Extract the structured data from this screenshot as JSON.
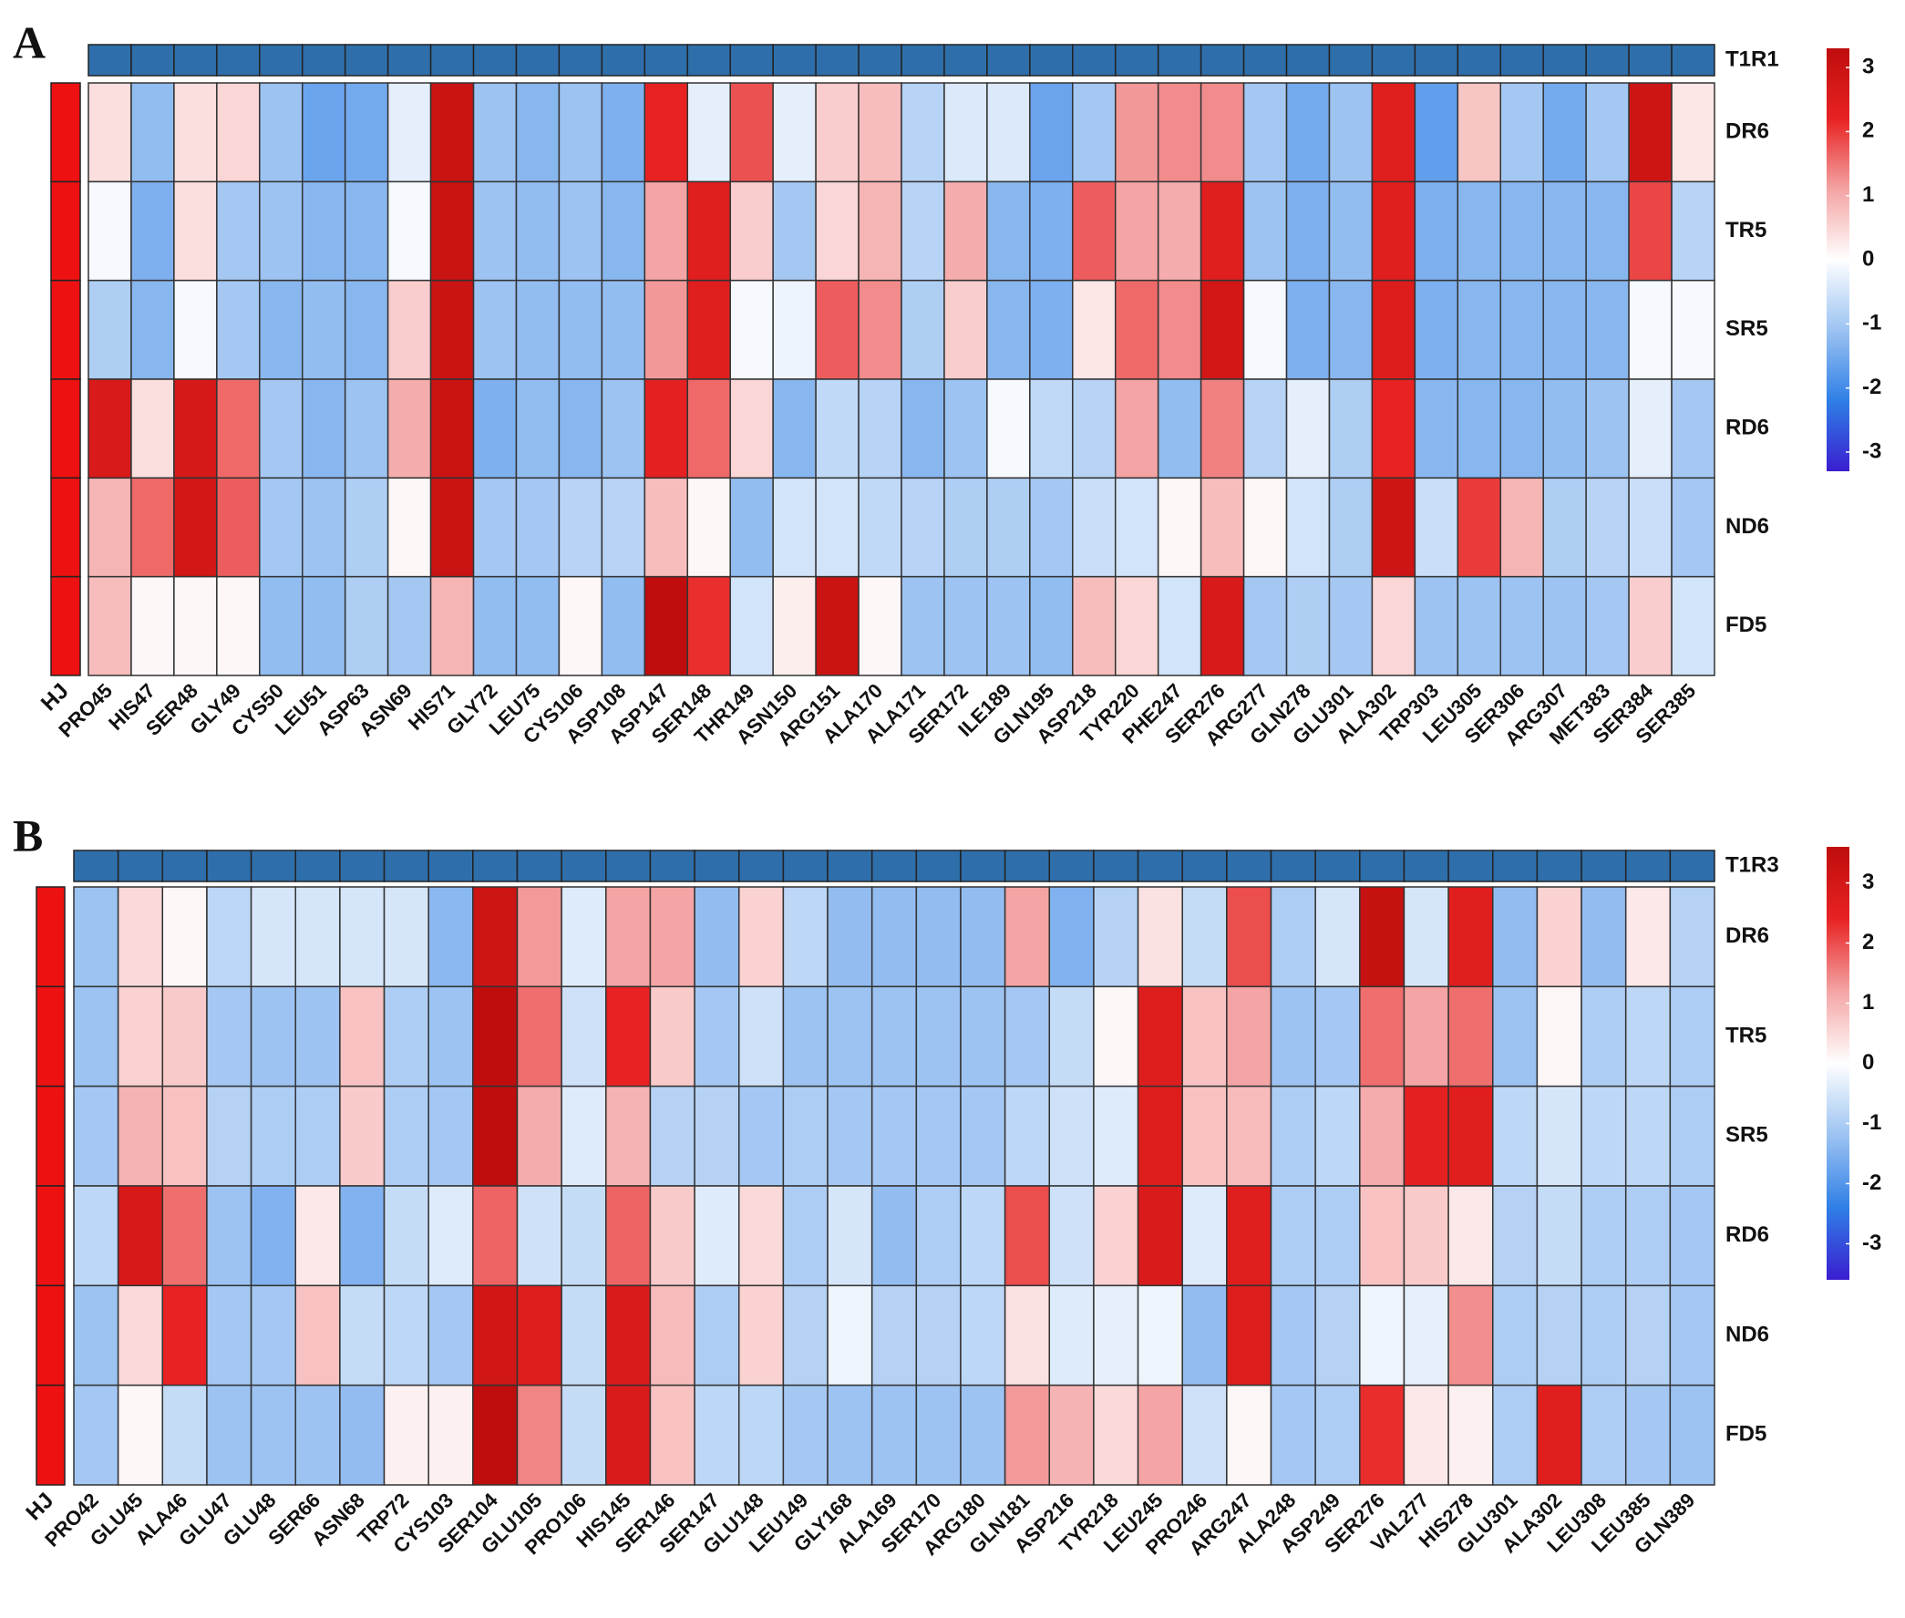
{
  "chart_data": [
    {
      "type": "heatmap",
      "panel_label": "A",
      "column_group": "T1R1",
      "row_group": "HJ",
      "column_group_color": "#2e6fab",
      "row_group_color": "#ee1111",
      "rows": [
        "DR6",
        "TR5",
        "SR5",
        "RD6",
        "ND6",
        "FD5"
      ],
      "columns": [
        "PRO45",
        "HIS47",
        "SER48",
        "GLY49",
        "CYS50",
        "LEU51",
        "ASP63",
        "ASN69",
        "HIS71",
        "GLY72",
        "LEU75",
        "CYS106",
        "ASP108",
        "ASP147",
        "SER148",
        "THR149",
        "ASN150",
        "ARG151",
        "ALA170",
        "ALA171",
        "SER172",
        "ILE189",
        "GLN195",
        "ASP218",
        "TYR220",
        "PHE247",
        "SER276",
        "ARG277",
        "GLN278",
        "GLU301",
        "ALA302",
        "TRP303",
        "LEU305",
        "SER306",
        "ARG307",
        "MET383",
        "SER384",
        "SER385"
      ],
      "values": [
        [
          0.4,
          -1.2,
          0.4,
          0.5,
          -1.1,
          -1.6,
          -1.5,
          -0.3,
          3.0,
          -1.1,
          -1.3,
          -1.1,
          -1.4,
          2.2,
          -0.3,
          1.8,
          -0.3,
          0.6,
          0.8,
          -0.8,
          -0.4,
          -0.4,
          -1.6,
          -1.0,
          1.2,
          1.3,
          1.3,
          -1.0,
          -1.5,
          -1.1,
          2.4,
          -1.7,
          0.7,
          -1.0,
          -1.5,
          -1.0,
          2.9,
          0.3
        ],
        [
          -0.1,
          -1.4,
          0.4,
          -1.0,
          -1.1,
          -1.3,
          -1.3,
          -0.1,
          3.0,
          -1.1,
          -1.2,
          -1.1,
          -1.3,
          1.1,
          2.4,
          0.6,
          -1.0,
          0.5,
          0.9,
          -0.8,
          1.0,
          -1.3,
          -1.4,
          1.7,
          1.1,
          1.0,
          2.4,
          -1.1,
          -1.4,
          -1.2,
          2.4,
          -1.4,
          -1.3,
          -1.3,
          -1.3,
          -1.3,
          1.9,
          -0.8
        ],
        [
          -0.9,
          -1.3,
          -0.1,
          -1.0,
          -1.3,
          -1.2,
          -1.3,
          0.6,
          3.0,
          -1.1,
          -1.2,
          -1.2,
          -1.2,
          1.2,
          2.4,
          -0.1,
          -0.2,
          1.7,
          1.3,
          -0.9,
          0.6,
          -1.3,
          -1.4,
          0.3,
          1.6,
          1.3,
          2.8,
          -0.1,
          -1.4,
          -1.3,
          2.5,
          -1.4,
          -1.3,
          -1.3,
          -1.3,
          -1.3,
          -0.1,
          -0.1
        ],
        [
          2.6,
          0.4,
          2.7,
          1.6,
          -1.0,
          -1.3,
          -1.1,
          1.0,
          3.0,
          -1.4,
          -1.2,
          -1.3,
          -1.1,
          2.3,
          1.6,
          0.5,
          -1.3,
          -0.7,
          -0.8,
          -1.3,
          -1.1,
          -0.1,
          -0.7,
          -0.8,
          1.1,
          -1.2,
          1.4,
          -0.8,
          -0.3,
          -0.9,
          2.2,
          -1.3,
          -1.3,
          -1.3,
          -1.2,
          -1.1,
          -0.3,
          -1.0
        ],
        [
          0.9,
          1.6,
          2.8,
          1.7,
          -1.0,
          -1.1,
          -0.9,
          0.1,
          3.0,
          -1.0,
          -1.0,
          -0.8,
          -0.8,
          0.8,
          0.1,
          -1.2,
          -0.5,
          -0.5,
          -0.7,
          -0.8,
          -0.9,
          -0.9,
          -1.0,
          -0.6,
          -0.5,
          0.1,
          0.8,
          0.1,
          -0.5,
          -0.9,
          2.9,
          -0.6,
          2.0,
          0.9,
          -0.9,
          -0.8,
          -0.6,
          -1.0
        ],
        [
          0.8,
          0.1,
          0.1,
          0.1,
          -1.2,
          -1.2,
          -0.9,
          -1.0,
          0.9,
          -1.2,
          -1.2,
          0.1,
          -1.2,
          3.3,
          2.1,
          -0.5,
          0.2,
          3.0,
          0.1,
          -1.1,
          -1.1,
          -1.1,
          -1.2,
          0.8,
          0.5,
          -0.5,
          2.6,
          -1.0,
          -0.9,
          -1.0,
          0.5,
          -1.1,
          -1.1,
          -1.1,
          -1.1,
          -1.0,
          0.6,
          -0.5
        ]
      ],
      "zlim": [
        -3.3,
        3.3
      ],
      "zticks": [
        -3,
        -2,
        -1,
        0,
        1,
        2,
        3
      ],
      "colors": [
        "#3a1ed0",
        "#2f7fe6",
        "#9cc3f2",
        "#ffffff",
        "#f4a4a4",
        "#e82222",
        "#bf0d0d"
      ]
    },
    {
      "type": "heatmap",
      "panel_label": "B",
      "column_group": "T1R3",
      "row_group": "HJ",
      "column_group_color": "#2e6fab",
      "row_group_color": "#ee1111",
      "rows": [
        "DR6",
        "TR5",
        "SR5",
        "RD6",
        "ND6",
        "FD5"
      ],
      "columns": [
        "PRO42",
        "GLU45",
        "ALA46",
        "GLU47",
        "GLU48",
        "SER66",
        "ASN68",
        "TRP72",
        "CYS103",
        "SER104",
        "GLU105",
        "PRO106",
        "HIS145",
        "SER146",
        "SER147",
        "GLU148",
        "LEU149",
        "GLY168",
        "ALA169",
        "SER170",
        "ARG180",
        "GLN181",
        "ASP216",
        "TYR218",
        "LEU245",
        "PRO246",
        "ARG247",
        "ALA248",
        "ASP249",
        "SER276",
        "VAL277",
        "HIS278",
        "GLU301",
        "ALA302",
        "LEU308",
        "LEU385",
        "GLN389"
      ],
      "values": [
        [
          -1.2,
          0.5,
          0.1,
          -0.8,
          -0.5,
          -0.5,
          -0.5,
          -0.5,
          -1.4,
          3.2,
          1.3,
          -0.4,
          1.2,
          1.2,
          -1.3,
          0.6,
          -0.8,
          -1.3,
          -1.3,
          -1.3,
          -1.3,
          1.2,
          -1.5,
          -0.9,
          0.4,
          -0.7,
          2.0,
          -1.0,
          -0.5,
          3.4,
          -0.5,
          2.6,
          -1.3,
          0.6,
          -1.3,
          0.3,
          -0.9
        ],
        [
          -1.2,
          0.6,
          0.7,
          -1.1,
          -1.2,
          -1.2,
          0.8,
          -1.0,
          -1.2,
          3.6,
          1.7,
          -0.6,
          2.4,
          0.7,
          -1.1,
          -0.6,
          -1.2,
          -1.2,
          -1.2,
          -1.2,
          -1.2,
          -1.1,
          -0.7,
          0.1,
          2.7,
          0.8,
          1.2,
          -1.2,
          -1.1,
          1.7,
          1.2,
          1.7,
          -1.2,
          0.1,
          -1.0,
          -0.8,
          -1.0
        ],
        [
          -1.1,
          1.0,
          0.8,
          -0.9,
          -1.0,
          -1.0,
          0.7,
          -1.0,
          -1.1,
          3.6,
          1.1,
          -0.4,
          1.0,
          -0.9,
          -0.9,
          -1.1,
          -1.0,
          -1.1,
          -1.1,
          -1.1,
          -1.1,
          -0.8,
          -0.6,
          -0.4,
          2.7,
          0.8,
          0.9,
          -1.0,
          -0.8,
          1.1,
          2.5,
          2.6,
          -0.8,
          -0.5,
          -0.8,
          -0.8,
          -1.0
        ],
        [
          -0.8,
          2.9,
          1.7,
          -1.2,
          -1.5,
          0.3,
          -1.5,
          -0.7,
          -0.4,
          1.8,
          -0.6,
          -0.7,
          1.8,
          0.7,
          -0.4,
          0.5,
          -1.0,
          -0.5,
          -1.3,
          -1.0,
          -0.8,
          2.0,
          -0.6,
          0.6,
          2.8,
          -0.4,
          2.6,
          -1.0,
          -1.0,
          0.8,
          0.7,
          0.3,
          -0.9,
          -0.7,
          -1.0,
          -1.0,
          -1.1
        ],
        [
          -1.2,
          0.5,
          2.4,
          -1.1,
          -1.1,
          0.8,
          -0.7,
          -0.8,
          -1.1,
          3.1,
          2.7,
          -0.7,
          2.8,
          0.9,
          -1.0,
          0.6,
          -0.9,
          -0.2,
          -0.9,
          -0.9,
          -0.8,
          0.4,
          -0.4,
          -0.3,
          -0.2,
          -1.3,
          2.7,
          -1.1,
          -0.9,
          -0.2,
          -0.3,
          1.4,
          -1.0,
          -0.9,
          -1.0,
          -0.9,
          -1.1
        ],
        [
          -1.1,
          0.1,
          -0.7,
          -1.2,
          -1.2,
          -1.2,
          -1.3,
          0.2,
          0.2,
          3.6,
          1.5,
          -0.7,
          2.8,
          0.8,
          -0.8,
          -0.8,
          -1.1,
          -1.2,
          -1.2,
          -1.2,
          -1.2,
          1.3,
          1.0,
          0.5,
          1.2,
          -0.6,
          0.1,
          -1.1,
          -1.0,
          2.3,
          0.3,
          0.2,
          -1.0,
          2.6,
          -1.0,
          -1.1,
          -1.2
        ]
      ],
      "zlim": [
        -3.6,
        3.6
      ],
      "zticks": [
        -3,
        -2,
        -1,
        0,
        1,
        2,
        3
      ],
      "colors": [
        "#3a1ed0",
        "#2f7fe6",
        "#9cc3f2",
        "#ffffff",
        "#f4a4a4",
        "#e82222",
        "#bf0d0d"
      ]
    }
  ]
}
